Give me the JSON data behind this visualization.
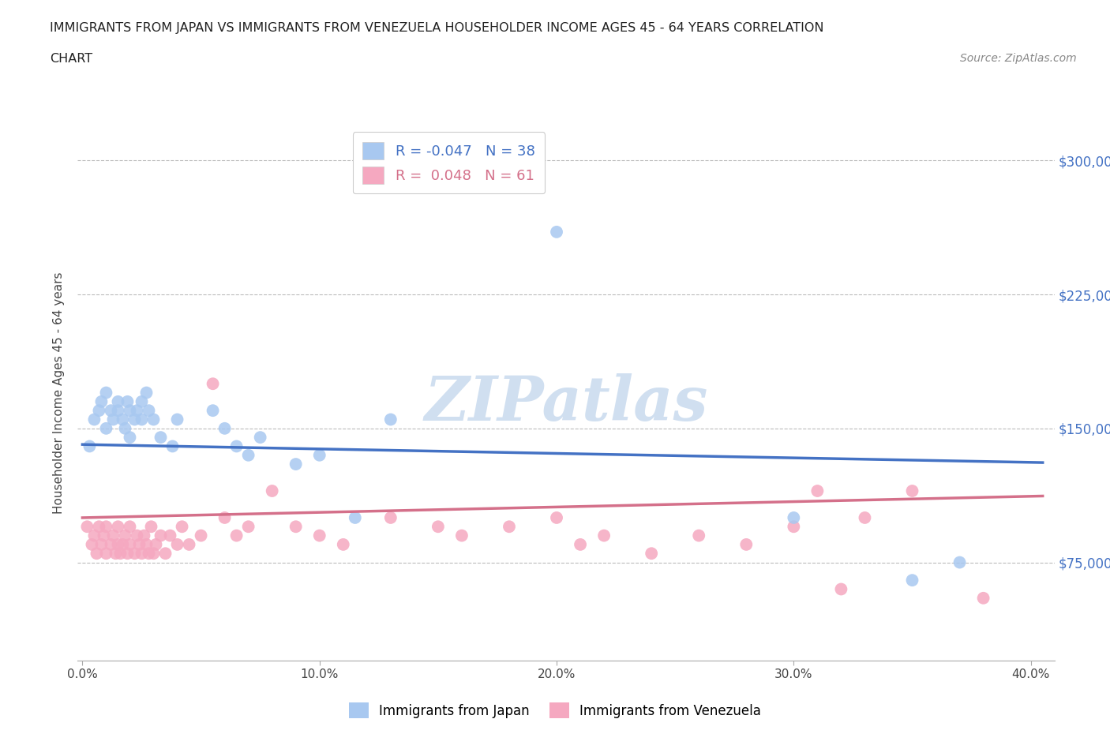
{
  "title_line1": "IMMIGRANTS FROM JAPAN VS IMMIGRANTS FROM VENEZUELA HOUSEHOLDER INCOME AGES 45 - 64 YEARS CORRELATION",
  "title_line2": "CHART",
  "source_text": "Source: ZipAtlas.com",
  "ylabel": "Householder Income Ages 45 - 64 years",
  "xlim": [
    -0.002,
    0.41
  ],
  "ylim": [
    20000,
    320000
  ],
  "yticks": [
    75000,
    150000,
    225000,
    300000
  ],
  "ytick_labels": [
    "$75,000",
    "$150,000",
    "$225,000",
    "$300,000"
  ],
  "xticks": [
    0.0,
    0.1,
    0.2,
    0.3,
    0.4
  ],
  "xtick_labels": [
    "0.0%",
    "10.0%",
    "20.0%",
    "30.0%",
    "40.0%"
  ],
  "japan_color": "#a8c8f0",
  "venezuela_color": "#f5a8c0",
  "japan_line_color": "#4472c4",
  "venezuela_line_color": "#d4708a",
  "japan_R": -0.047,
  "japan_N": 38,
  "venezuela_R": 0.048,
  "venezuela_N": 61,
  "watermark": "ZIPatlas",
  "watermark_color": "#d0dff0",
  "grid_color": "#bbbbbb",
  "japan_scatter_x": [
    0.003,
    0.005,
    0.007,
    0.008,
    0.01,
    0.01,
    0.012,
    0.013,
    0.015,
    0.015,
    0.017,
    0.018,
    0.019,
    0.02,
    0.02,
    0.022,
    0.023,
    0.025,
    0.025,
    0.027,
    0.028,
    0.03,
    0.033,
    0.038,
    0.04,
    0.055,
    0.06,
    0.065,
    0.07,
    0.075,
    0.09,
    0.1,
    0.115,
    0.13,
    0.2,
    0.3,
    0.35,
    0.37
  ],
  "japan_scatter_y": [
    140000,
    155000,
    160000,
    165000,
    150000,
    170000,
    160000,
    155000,
    160000,
    165000,
    155000,
    150000,
    165000,
    145000,
    160000,
    155000,
    160000,
    165000,
    155000,
    170000,
    160000,
    155000,
    145000,
    140000,
    155000,
    160000,
    150000,
    140000,
    135000,
    145000,
    130000,
    135000,
    100000,
    155000,
    260000,
    100000,
    65000,
    75000
  ],
  "venezuela_scatter_x": [
    0.002,
    0.004,
    0.005,
    0.006,
    0.007,
    0.008,
    0.009,
    0.01,
    0.01,
    0.012,
    0.013,
    0.014,
    0.015,
    0.015,
    0.016,
    0.017,
    0.018,
    0.019,
    0.02,
    0.02,
    0.022,
    0.023,
    0.024,
    0.025,
    0.026,
    0.027,
    0.028,
    0.029,
    0.03,
    0.031,
    0.033,
    0.035,
    0.037,
    0.04,
    0.042,
    0.045,
    0.05,
    0.055,
    0.06,
    0.065,
    0.07,
    0.08,
    0.09,
    0.1,
    0.11,
    0.13,
    0.15,
    0.16,
    0.18,
    0.2,
    0.21,
    0.22,
    0.24,
    0.26,
    0.28,
    0.3,
    0.31,
    0.32,
    0.33,
    0.35,
    0.38
  ],
  "venezuela_scatter_y": [
    95000,
    85000,
    90000,
    80000,
    95000,
    85000,
    90000,
    80000,
    95000,
    85000,
    90000,
    80000,
    85000,
    95000,
    80000,
    85000,
    90000,
    80000,
    85000,
    95000,
    80000,
    90000,
    85000,
    80000,
    90000,
    85000,
    80000,
    95000,
    80000,
    85000,
    90000,
    80000,
    90000,
    85000,
    95000,
    85000,
    90000,
    175000,
    100000,
    90000,
    95000,
    115000,
    95000,
    90000,
    85000,
    100000,
    95000,
    90000,
    95000,
    100000,
    85000,
    90000,
    80000,
    90000,
    85000,
    95000,
    115000,
    60000,
    100000,
    115000,
    55000
  ]
}
